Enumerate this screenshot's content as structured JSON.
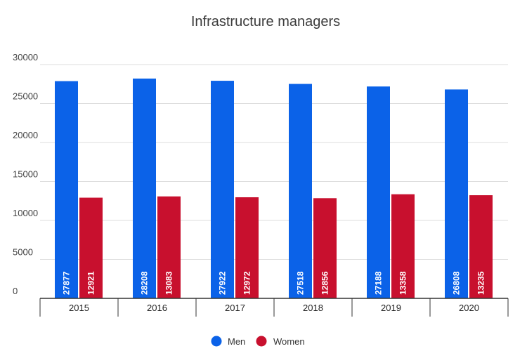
{
  "chart_data": {
    "type": "bar",
    "title": "Infrastructure managers",
    "xlabel": "",
    "ylabel": "",
    "categories": [
      "2015",
      "2016",
      "2017",
      "2018",
      "2019",
      "2020"
    ],
    "series": [
      {
        "name": "Men",
        "color": "#0b62e8",
        "values": [
          27877,
          28208,
          27922,
          27518,
          27188,
          26808
        ]
      },
      {
        "name": "Women",
        "color": "#c8102e",
        "values": [
          12921,
          13083,
          12972,
          12856,
          13358,
          13235
        ]
      }
    ],
    "ylim": [
      0,
      30000
    ],
    "yticks": [
      0,
      5000,
      10000,
      15000,
      20000,
      25000,
      30000
    ],
    "grid": true,
    "legend": "bottom",
    "data_labels": "inside-bar-vertical"
  }
}
